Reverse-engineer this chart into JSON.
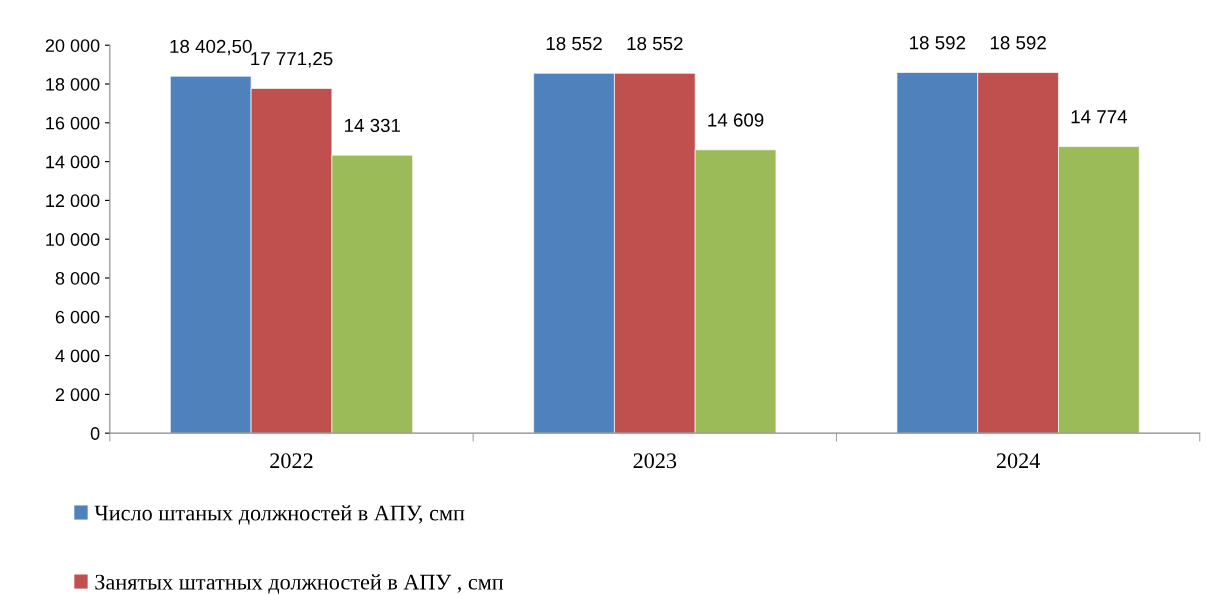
{
  "chart_data": {
    "type": "bar",
    "categories": [
      "2022",
      "2023",
      "2024"
    ],
    "series": [
      {
        "name": "Число штаных должностей в АПУ, смп",
        "color": "#4f81bd",
        "values": [
          18402.5,
          18552,
          18592
        ],
        "value_labels": [
          "18 402,50",
          "18 552",
          "18 592"
        ]
      },
      {
        "name": "Занятых штатных должностей в АПУ , смп",
        "color": "#c0504d",
        "values": [
          17771.25,
          18552,
          18592
        ],
        "value_labels": [
          "17 771,25",
          "18 552",
          "18 592"
        ]
      },
      {
        "color": "#9bbb59",
        "values": [
          14331,
          14609,
          14774
        ],
        "value_labels": [
          "14 331",
          "14 609",
          "14 774"
        ]
      }
    ],
    "ylim": [
      0,
      20000
    ],
    "yticks": [
      0,
      {
        "value": 2000,
        "label": "2 000"
      },
      {
        "value": 4000,
        "label": "4 000"
      },
      {
        "value": 6000,
        "label": "6 000"
      },
      {
        "value": 8000,
        "label": "8 000"
      },
      {
        "value": 10000,
        "label": "10 000"
      },
      {
        "value": 12000,
        "label": "12 000"
      },
      {
        "value": 14000,
        "label": "14 000"
      },
      {
        "value": 16000,
        "label": "16 000"
      },
      {
        "value": 18000,
        "label": "18 000"
      },
      {
        "value": 20000,
        "label": "20 000"
      }
    ],
    "grid": false,
    "legend": "bottom left"
  }
}
